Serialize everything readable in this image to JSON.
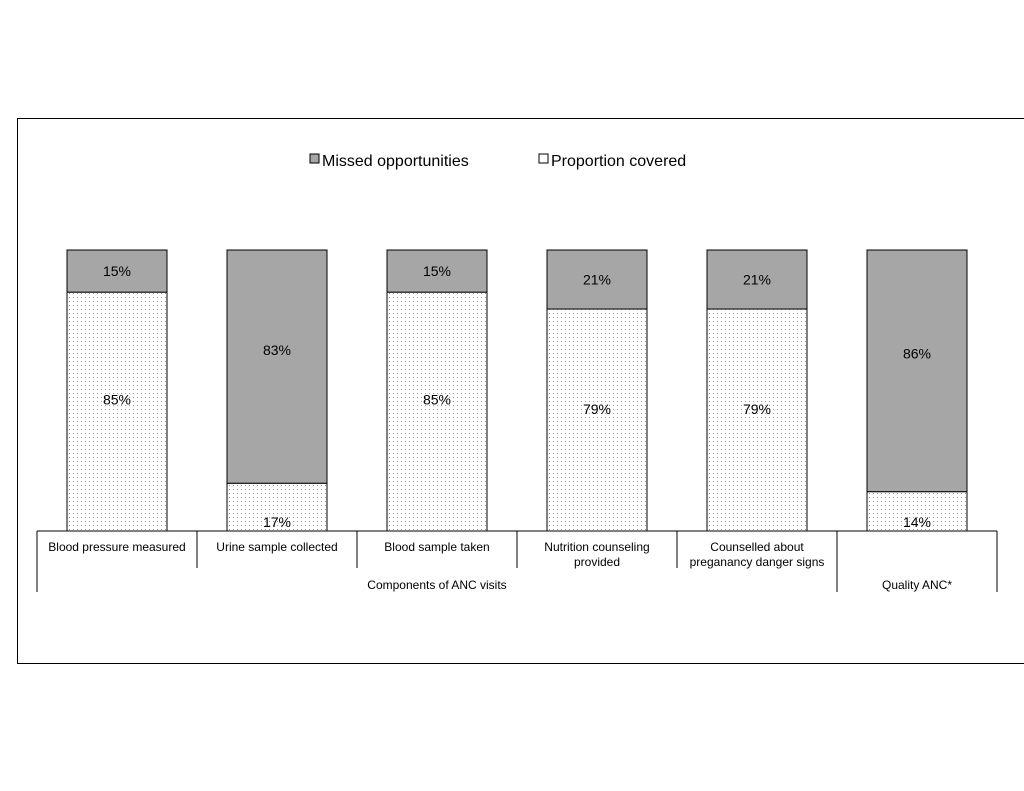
{
  "chart_data": {
    "type": "bar",
    "stacked": true,
    "percent_stacked": true,
    "ylim": [
      0,
      100
    ],
    "grid": false,
    "legend_position": "top",
    "categories": [
      "Blood pressure measured",
      "Urine sample collected",
      "Blood sample taken",
      "Nutrition counseling provided",
      "Counselled about preganancy danger signs",
      "Quality ANC*"
    ],
    "category_groups": [
      {
        "label": "Components of ANC visits",
        "categories": 5
      },
      {
        "label": "",
        "categories": 1
      }
    ],
    "series": [
      {
        "name": "Proportion covered",
        "values": [
          85,
          17,
          85,
          79,
          79,
          14
        ],
        "labels": [
          "85%",
          "17%",
          "85%",
          "79%",
          "79%",
          "14%"
        ],
        "fill": "dotted-white"
      },
      {
        "name": "Missed opportunities",
        "values": [
          15,
          83,
          15,
          21,
          21,
          86
        ],
        "labels": [
          "15%",
          "83%",
          "15%",
          "21%",
          "21%",
          "86%"
        ],
        "fill": "#a6a6a6"
      }
    ],
    "legend_order": [
      "Missed opportunities",
      "Proportion covered"
    ],
    "colors": {
      "missed": "#a6a6a6",
      "covered_bg": "#ffffff",
      "covered_dot": "#9a9a9a"
    }
  }
}
